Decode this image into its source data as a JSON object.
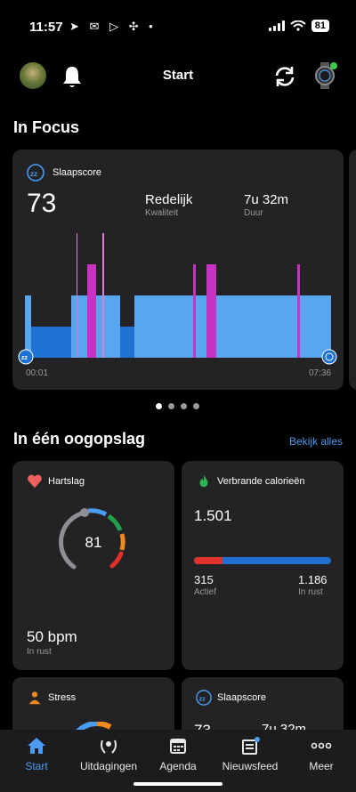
{
  "status_bar": {
    "time": "11:57",
    "battery": "81"
  },
  "header": {
    "title": "Start"
  },
  "in_focus": {
    "title": "In Focus",
    "card": {
      "label": "Slaapscore",
      "score": "73",
      "quality_value": "Redelijk",
      "quality_label": "Kwaliteit",
      "duration_value": "7u 32m",
      "duration_label": "Duur",
      "start_time": "00:01",
      "end_time": "07:36"
    },
    "page_count": 4,
    "active_page": 1
  },
  "glance": {
    "title": "In één oogopslag",
    "see_all": "Bekijk alles",
    "heart": {
      "title": "Hartslag",
      "current": "81",
      "resting_value": "50 bpm",
      "resting_label": "In rust"
    },
    "calories": {
      "title": "Verbrande calorieën",
      "total": "1.501",
      "active_value": "315",
      "active_label": "Actief",
      "rest_value": "1.186",
      "rest_label": "In rust",
      "active_fraction": 0.21
    },
    "stress": {
      "title": "Stress"
    },
    "sleep": {
      "title": "Slaapscore",
      "score_partial": "73",
      "duration_partial": "7u 32m"
    }
  },
  "nav": {
    "items": [
      {
        "label": "Start",
        "icon": "home-icon"
      },
      {
        "label": "Uitdagingen",
        "icon": "laurel-icon"
      },
      {
        "label": "Agenda",
        "icon": "calendar-icon"
      },
      {
        "label": "Nieuwsfeed",
        "icon": "newsfeed-icon"
      },
      {
        "label": "Meer",
        "icon": "more-icon"
      }
    ]
  },
  "colors": {
    "card_bg": "#232325",
    "accent_blue": "#4a9bf1",
    "sleep_light": "#5aa5f0",
    "sleep_deep": "#1f72d1",
    "sleep_rem": "#c833c4",
    "calorie_active": "#e0312b",
    "calorie_rest": "#1f6fd0"
  }
}
